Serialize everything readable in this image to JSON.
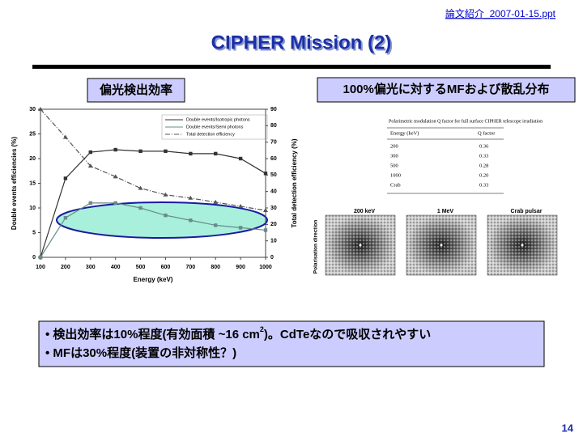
{
  "header_note": "論文紹介_2007-01-15.ppt",
  "title": "CIPHER Mission (2)",
  "left_label": "偏光検出効率",
  "right_label": "100%偏光に対するMFおよび散乱分布",
  "chart_data": {
    "type": "line",
    "xlabel": "Energy (keV)",
    "ylabel": "Double events efficiencies (%)",
    "y2label": "Total detection efficiency (%)",
    "x": [
      100,
      200,
      300,
      400,
      500,
      600,
      700,
      800,
      900,
      1000
    ],
    "xlim": [
      100,
      1000
    ],
    "xticks": [
      100,
      200,
      300,
      400,
      500,
      600,
      700,
      800,
      900,
      1000
    ],
    "ylim": [
      0,
      30
    ],
    "yticks": [
      0,
      5,
      10,
      15,
      20,
      25,
      30
    ],
    "y2lim": [
      0,
      90
    ],
    "y2ticks": [
      0,
      10,
      20,
      30,
      40,
      50,
      60,
      70,
      80,
      90
    ],
    "series": [
      {
        "name": "Double events/Isotropic photons",
        "color": "#333333",
        "marker": "square",
        "values": [
          0,
          16,
          21.3,
          21.8,
          21.5,
          21.5,
          21,
          21,
          20,
          17
        ]
      },
      {
        "name": "Double events/Semi photons",
        "color": "#6a8a8a",
        "marker": "square",
        "values": [
          0,
          8,
          11,
          11,
          10,
          8.5,
          7.5,
          6.5,
          6,
          5.5
        ]
      },
      {
        "name": "Total detection efficiency",
        "color": "#555555",
        "marker": "triangle",
        "dash": true,
        "axis": "y2",
        "values": [
          90,
          73,
          55.5,
          49,
          42,
          38,
          36,
          33.5,
          31,
          28.5
        ]
      }
    ]
  },
  "table": {
    "caption": "Polarimetric modulation Q factor for full surface CIPHER telescope irradiation",
    "header": [
      "Energy (keV)",
      "Q factor"
    ],
    "rows": [
      [
        "200",
        "0.36"
      ],
      [
        "300",
        "0.33"
      ],
      [
        "500",
        "0.28"
      ],
      [
        "1000",
        "0.20"
      ],
      [
        "Crab",
        "0.33"
      ]
    ]
  },
  "maps": {
    "axis_label": "Polarisation direction",
    "labels": [
      "200 keV",
      "1 MeV",
      "Crab pulsar"
    ]
  },
  "bullets": [
    [
      "• 検出効率は10%程度(有効面積 ~16 cm",
      "2",
      ")。CdTeなので吸収されやすい"
    ],
    [
      "• MFは30%程度(装置の非対称性？)"
    ]
  ],
  "page_number": "14"
}
